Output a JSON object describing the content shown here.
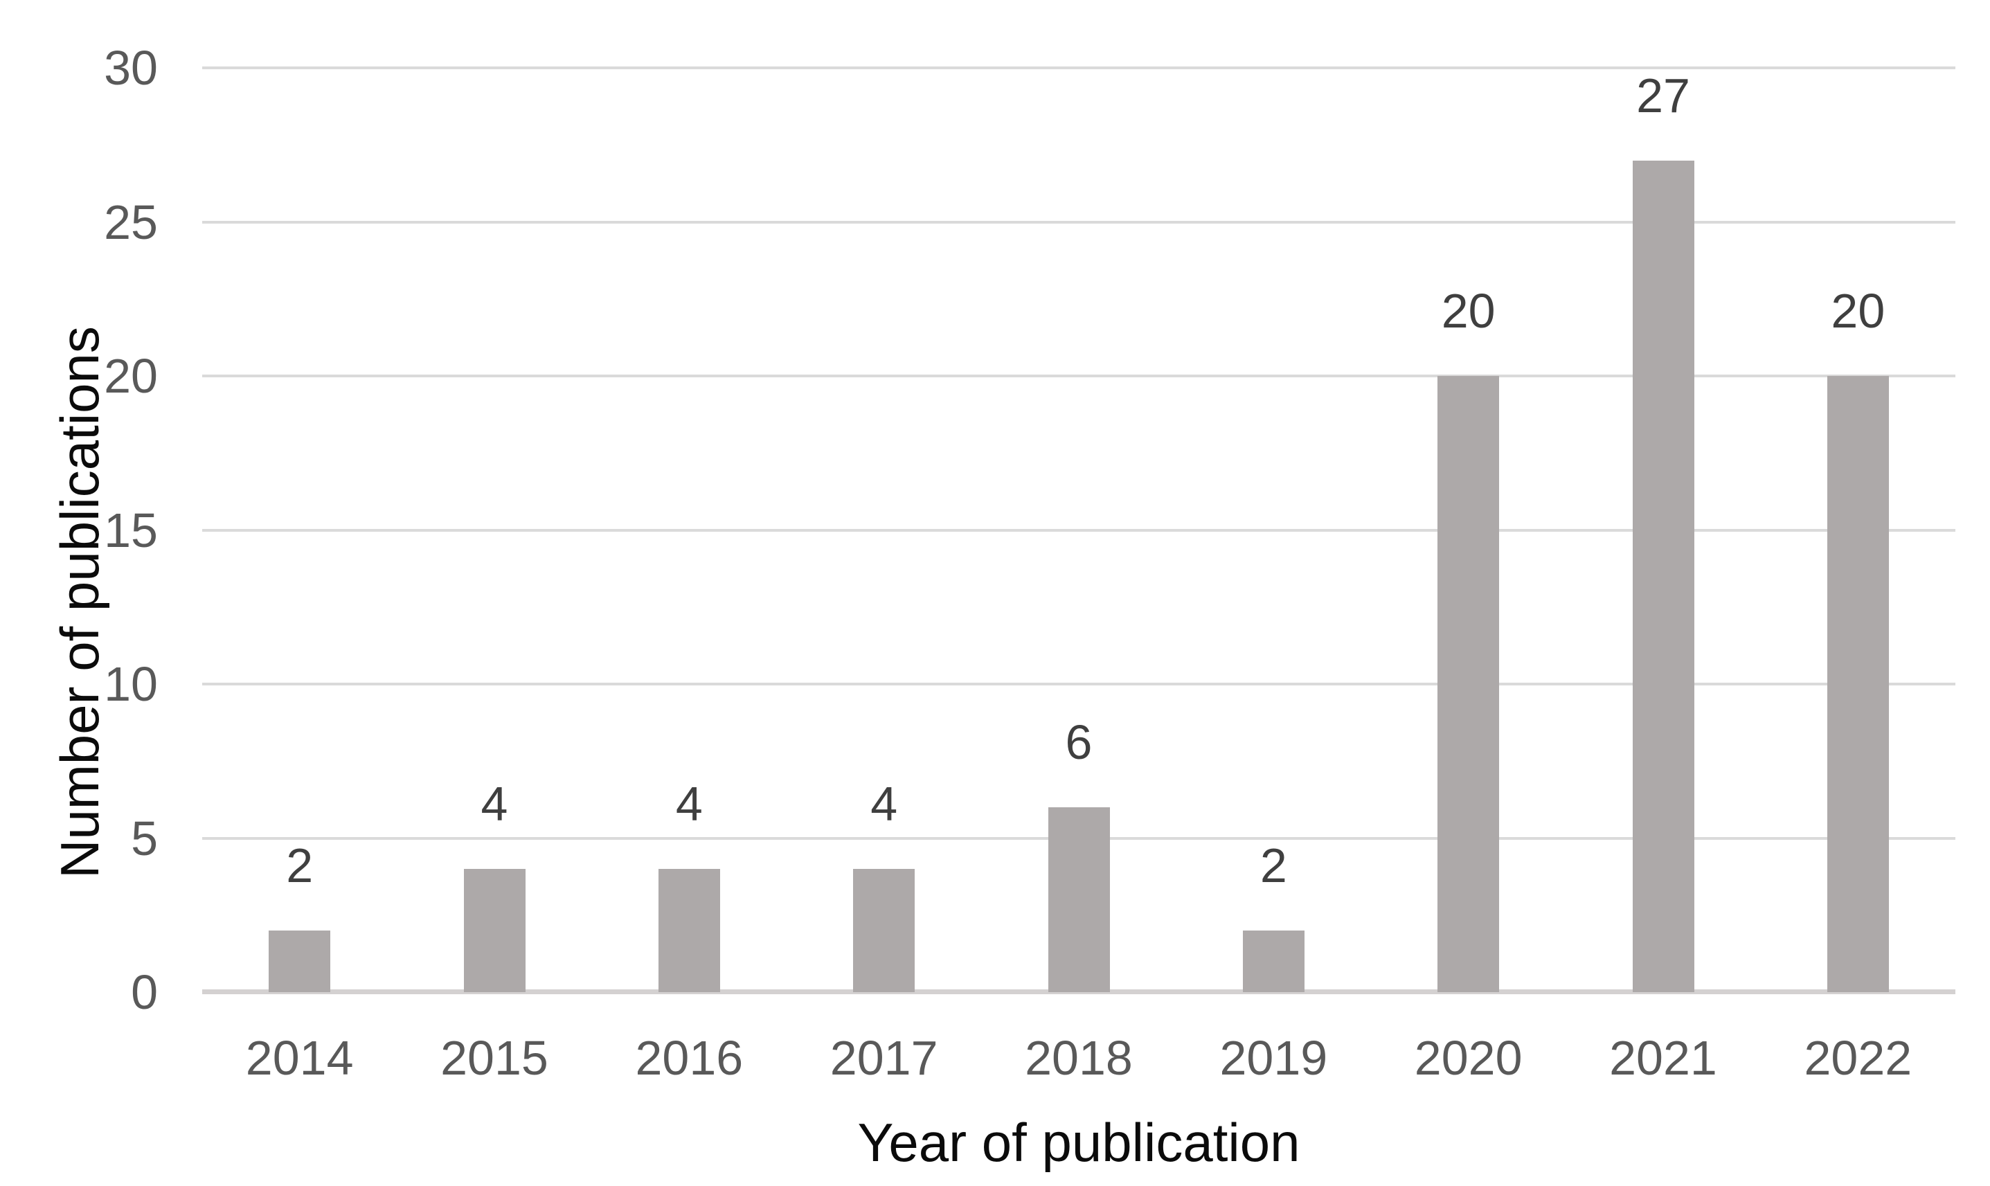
{
  "chart_data": {
    "type": "bar",
    "title": "",
    "categories": [
      "2014",
      "2015",
      "2016",
      "2017",
      "2018",
      "2019",
      "2020",
      "2021",
      "2022"
    ],
    "values": [
      2,
      4,
      4,
      4,
      6,
      2,
      20,
      27,
      20
    ],
    "data_labels": [
      "2",
      "4",
      "4",
      "4",
      "6",
      "2",
      "20",
      "27",
      "20"
    ],
    "xlabel": "Year of publication",
    "ylabel": "Number of publications",
    "ylim": [
      0,
      30
    ],
    "yticks": [
      0,
      5,
      10,
      15,
      20,
      25,
      30
    ],
    "grid": true,
    "legend": false,
    "colors": {
      "background": "#ffffff",
      "bar": "#ada9a9",
      "gridline": "#dadada",
      "axis_line": "#d4d1d1",
      "tick_label": "#595959",
      "data_label": "#3f3f3f",
      "axis_title": "#0b0b0b"
    }
  }
}
